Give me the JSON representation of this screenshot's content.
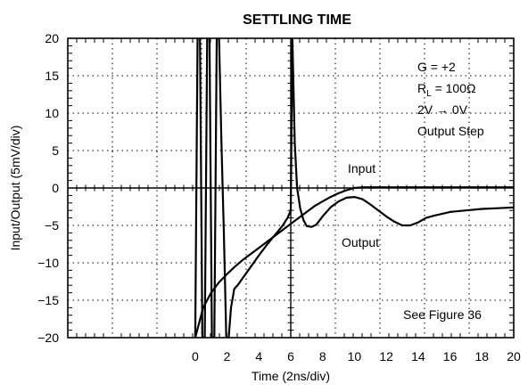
{
  "chart_data": {
    "type": "line",
    "title": "SETTLING TIME",
    "xlabel": "Time (2ns/div)",
    "ylabel": "Input/Output (5mV/div)",
    "xlim": [
      -8,
      20
    ],
    "ylim": [
      -20,
      20
    ],
    "x_ticks": [
      0,
      2,
      4,
      6,
      8,
      10,
      12,
      14,
      16,
      18,
      20
    ],
    "x_tick_labels": [
      "0",
      "2",
      "4",
      "6",
      "8",
      "10",
      "12",
      "14",
      "16",
      "18",
      "20"
    ],
    "y_ticks": [
      20,
      15,
      10,
      5,
      0,
      -5,
      -10,
      -15,
      -20
    ],
    "y_tick_labels": [
      "20",
      "15",
      "10",
      "5",
      "0",
      "−5",
      "−10",
      "−15",
      "−20"
    ],
    "grid": true,
    "annotations": {
      "gain": "G = +2",
      "load_prefix": "R",
      "load_sub": "L",
      "load_suffix": " = 100Ω",
      "step": "2V → 0V",
      "step_type": "Output Step",
      "input_label": "Input",
      "output_label": "Output",
      "figure_ref": "See Figure 36"
    },
    "series": [
      {
        "label_key": "input",
        "x": [
          0.0,
          0.5,
          1.0,
          1.5,
          2.0,
          2.5,
          3.0,
          3.5,
          4.0,
          4.5,
          5.0,
          5.5,
          6.0,
          6.5,
          7.0,
          7.5,
          8.0,
          8.5,
          9.0,
          9.5,
          10.0,
          10.5,
          11.0,
          12.0,
          13.0,
          14.0,
          15.0,
          16.0,
          17.0,
          18.0,
          19.0,
          20.0
        ],
        "y": [
          -20,
          -16,
          -14,
          -12.6,
          -11.5,
          -10.5,
          -9.6,
          -8.8,
          -8.0,
          -7.2,
          -6.4,
          -5.6,
          -4.8,
          -4.0,
          -3.2,
          -2.4,
          -1.8,
          -1.2,
          -0.7,
          -0.3,
          0.0,
          0.1,
          0.1,
          0.1,
          0.1,
          0.1,
          0.1,
          0.1,
          0.1,
          0.1,
          0.1,
          0.1
        ]
      },
      {
        "label_key": "output",
        "x": [
          0.0,
          0.15,
          0.3,
          0.45,
          0.6,
          0.75,
          0.9,
          1.05,
          1.2,
          1.35,
          1.5,
          1.65,
          1.8,
          1.95,
          2.1,
          2.25,
          2.45,
          2.7,
          3.0,
          3.5,
          4.0,
          4.5,
          5.0,
          5.5,
          5.8,
          6.0,
          6.1,
          6.25,
          6.4,
          6.6,
          6.8,
          7.0,
          7.3,
          7.6,
          8.0,
          8.5,
          9.0,
          9.5,
          10.0,
          10.5,
          11.0,
          11.5,
          12.0,
          12.5,
          13.0,
          13.5,
          14.0,
          14.5,
          15.0,
          16.0,
          17.0,
          18.0,
          19.0,
          20.0
        ],
        "y": [
          -20,
          20,
          20,
          -20,
          -20,
          20,
          20,
          -20,
          -20,
          20,
          20,
          6,
          -6,
          -20,
          -20,
          -16,
          -13.5,
          -12.9,
          -12.0,
          -10.5,
          -9.0,
          -7.6,
          -6.3,
          -5.0,
          -4.0,
          -3.0,
          20,
          6,
          0,
          -2.8,
          -4.3,
          -5.1,
          -5.2,
          -4.9,
          -3.8,
          -2.6,
          -1.8,
          -1.3,
          -1.2,
          -1.5,
          -2.2,
          -3.0,
          -3.8,
          -4.5,
          -5.0,
          -5.0,
          -4.6,
          -4.0,
          -3.7,
          -3.2,
          -3.0,
          -2.8,
          -2.7,
          -2.6
        ]
      }
    ]
  }
}
